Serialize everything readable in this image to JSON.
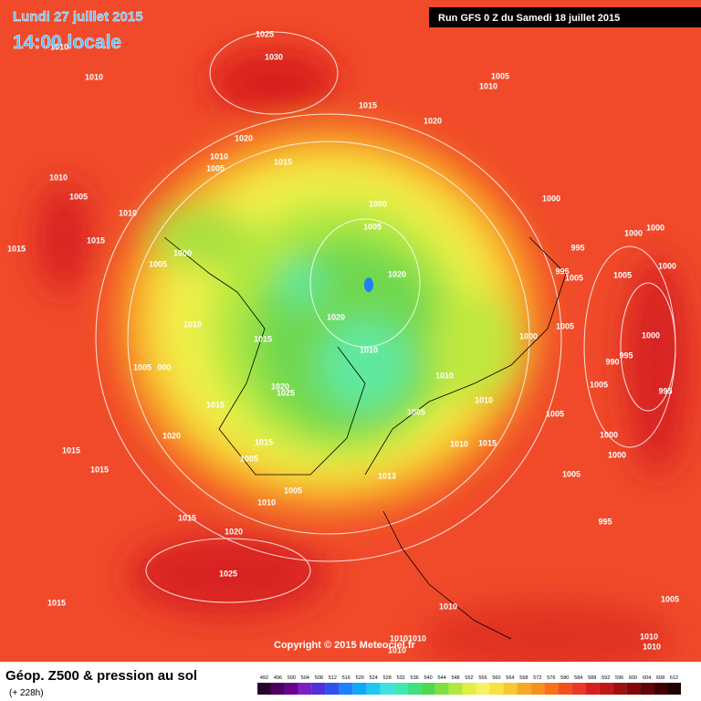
{
  "header": {
    "date": "Lundi 27 juillet 2015",
    "time": "14:00 locale",
    "run": "Run GFS 0 Z du Samedi 18 juillet 2015"
  },
  "copyright": "Copyright © 2015 Meteociel.fr",
  "footer": {
    "title": "Géop. Z500 & pression au sol",
    "subtitle": "(+ 228h)"
  },
  "colorbar": {
    "labels": [
      "492",
      "496",
      "500",
      "504",
      "508",
      "512",
      "516",
      "520",
      "524",
      "528",
      "532",
      "536",
      "540",
      "544",
      "548",
      "552",
      "556",
      "560",
      "564",
      "568",
      "572",
      "576",
      "580",
      "584",
      "588",
      "592",
      "596",
      "600",
      "604",
      "608",
      "612"
    ],
    "colors": [
      "#2a0030",
      "#4b0060",
      "#6a0090",
      "#7a20c0",
      "#5030d8",
      "#3050f0",
      "#2080f8",
      "#10a8f8",
      "#20c8f0",
      "#40e0e0",
      "#40e8b0",
      "#40e080",
      "#50d850",
      "#80e040",
      "#b0e840",
      "#e0f040",
      "#f8f060",
      "#f8e040",
      "#f8c830",
      "#f8a828",
      "#f89020",
      "#f87018",
      "#f05020",
      "#e83828",
      "#d82020",
      "#c01818",
      "#a01010",
      "#800808",
      "#600404",
      "#400000",
      "#200000"
    ]
  },
  "isobar_labels": [
    "1025",
    "1030",
    "1010",
    "1010",
    "1005",
    "1010",
    "1015",
    "1020",
    "1020",
    "1010",
    "1005",
    "1015",
    "1010",
    "1005",
    "1010",
    "1000",
    "1005",
    "1000",
    "1000",
    "1015",
    "1015",
    "995",
    "1000",
    "1000",
    "1005",
    "995",
    "1005",
    "1005",
    "1000",
    "1020",
    "1020",
    "1010",
    "1005",
    "1000",
    "1000",
    "1015",
    "1010",
    "995",
    "990",
    "1005",
    "000",
    "1010",
    "1020",
    "1025",
    "1005",
    "1010",
    "995",
    "1015",
    "1005",
    "1005",
    "1020",
    "1015",
    "1015",
    "1000",
    "1010",
    "1000",
    "1015",
    "1005",
    "1015",
    "1005",
    "1013",
    "1005",
    "1010",
    "995",
    "1015",
    "1020",
    "1025",
    "1015",
    "1005",
    "1010",
    "1010",
    "1010",
    "1010",
    "1010",
    "1010"
  ]
}
